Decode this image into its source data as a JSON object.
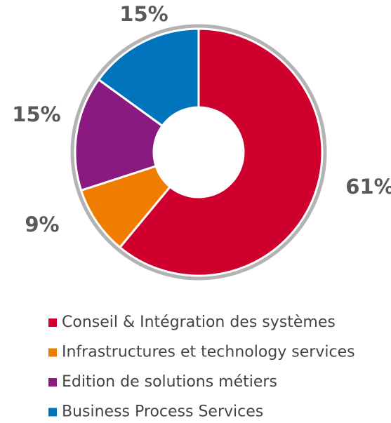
{
  "chart_data": {
    "type": "donut",
    "categories": [
      "Conseil & Intégration des systèmes",
      "Infrastructures et technology services",
      "Edition de solutions métiers",
      "Business Process Services"
    ],
    "values": [
      61,
      9,
      15,
      15
    ],
    "value_labels": [
      "61%",
      "9%",
      "15%",
      "15%"
    ],
    "colors": [
      "#d0002e",
      "#f07d00",
      "#8b1a80",
      "#0075be"
    ],
    "legend": "bottom"
  }
}
